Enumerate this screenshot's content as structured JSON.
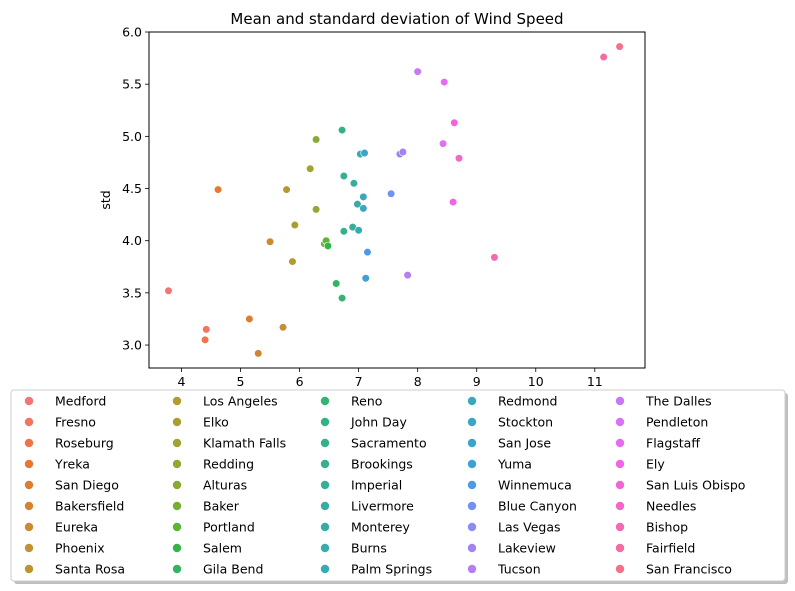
{
  "chart_data": {
    "type": "scatter",
    "title": "Mean and standard deviation of Wind Speed",
    "xlabel": "",
    "ylabel": "std",
    "xlim": [
      3.45,
      11.85
    ],
    "ylim": [
      2.78,
      6.0
    ],
    "xticks": [
      "4",
      "5",
      "6",
      "7",
      "8",
      "9",
      "10",
      "11"
    ],
    "yticks": [
      "3.0",
      "3.5",
      "4.0",
      "4.5",
      "5.0",
      "5.5",
      "6.0"
    ],
    "grid": false,
    "legend_position": "bottom",
    "series": [
      {
        "name": "Medford",
        "color": "#f37376",
        "x": 3.78,
        "y": 3.52
      },
      {
        "name": "Fresno",
        "color": "#f27461",
        "x": 4.42,
        "y": 3.15
      },
      {
        "name": "Roseburg",
        "color": "#ef7448",
        "x": 4.4,
        "y": 3.05
      },
      {
        "name": "Yreka",
        "color": "#e5792f",
        "x": 4.62,
        "y": 4.49
      },
      {
        "name": "San Diego",
        "color": "#dd7d31",
        "x": 5.15,
        "y": 3.25
      },
      {
        "name": "Bakersfield",
        "color": "#d38331",
        "x": 5.3,
        "y": 2.92
      },
      {
        "name": "Eureka",
        "color": "#cb8a31",
        "x": 5.5,
        "y": 3.99
      },
      {
        "name": "Phoenix",
        "color": "#c39032",
        "x": 5.72,
        "y": 3.17
      },
      {
        "name": "Santa Rosa",
        "color": "#bb9532",
        "x": 5.78,
        "y": 4.49
      },
      {
        "name": "Los Angeles",
        "color": "#b39a32",
        "x": 5.88,
        "y": 3.8
      },
      {
        "name": "Elko",
        "color": "#aa9e32",
        "x": 5.92,
        "y": 4.15
      },
      {
        "name": "Klamath Falls",
        "color": "#a0a232",
        "x": 6.18,
        "y": 4.69
      },
      {
        "name": "Redding",
        "color": "#95a632",
        "x": 6.28,
        "y": 4.3
      },
      {
        "name": "Alturas",
        "color": "#87aa32",
        "x": 6.28,
        "y": 4.97
      },
      {
        "name": "Baker",
        "color": "#76ae32",
        "x": 6.42,
        "y": 3.97
      },
      {
        "name": "Portland",
        "color": "#5db332",
        "x": 6.45,
        "y": 4.0
      },
      {
        "name": "Salem",
        "color": "#33b546",
        "x": 6.48,
        "y": 3.95
      },
      {
        "name": "Gila Bend",
        "color": "#34b462",
        "x": 6.62,
        "y": 3.59
      },
      {
        "name": "Reno",
        "color": "#35b373",
        "x": 6.72,
        "y": 3.45
      },
      {
        "name": "John Day",
        "color": "#35b27f",
        "x": 6.72,
        "y": 5.06
      },
      {
        "name": "Sacramento",
        "color": "#35b089",
        "x": 6.75,
        "y": 4.09
      },
      {
        "name": "Brookings",
        "color": "#36af92",
        "x": 6.75,
        "y": 4.62
      },
      {
        "name": "Imperial",
        "color": "#36ae99",
        "x": 6.9,
        "y": 4.13
      },
      {
        "name": "Livermore",
        "color": "#37ada0",
        "x": 6.92,
        "y": 4.55
      },
      {
        "name": "Monterey",
        "color": "#37aca7",
        "x": 6.98,
        "y": 4.35
      },
      {
        "name": "Burns",
        "color": "#38abad",
        "x": 7.0,
        "y": 4.1
      },
      {
        "name": "Palm Springs",
        "color": "#38aab4",
        "x": 7.03,
        "y": 4.83
      },
      {
        "name": "Redmond",
        "color": "#39a8bb",
        "x": 7.08,
        "y": 4.42
      },
      {
        "name": "Stockton",
        "color": "#39a7c3",
        "x": 7.08,
        "y": 4.31
      },
      {
        "name": "San Jose",
        "color": "#3ba4cc",
        "x": 7.1,
        "y": 4.84
      },
      {
        "name": "Yuma",
        "color": "#3ca1d8",
        "x": 7.12,
        "y": 3.64
      },
      {
        "name": "Winnemuca",
        "color": "#4f9ae8",
        "x": 7.15,
        "y": 3.89
      },
      {
        "name": "Blue Canyon",
        "color": "#7191f4",
        "x": 7.55,
        "y": 4.45
      },
      {
        "name": "Las Vegas",
        "color": "#8c8af4",
        "x": 7.7,
        "y": 4.83
      },
      {
        "name": "Lakeview",
        "color": "#a283f4",
        "x": 7.75,
        "y": 4.85
      },
      {
        "name": "Tucson",
        "color": "#b67ef4",
        "x": 7.83,
        "y": 3.67
      },
      {
        "name": "The Dalles",
        "color": "#c878f4",
        "x": 8.0,
        "y": 5.62
      },
      {
        "name": "Pendleton",
        "color": "#d972f4",
        "x": 8.43,
        "y": 4.93
      },
      {
        "name": "Flagstaff",
        "color": "#e76bf2",
        "x": 8.45,
        "y": 5.52
      },
      {
        "name": "Ely",
        "color": "#f066e4",
        "x": 8.6,
        "y": 4.37
      },
      {
        "name": "San Luis Obispo",
        "color": "#f265d4",
        "x": 8.62,
        "y": 5.13
      },
      {
        "name": "Needles",
        "color": "#f467c4",
        "x": 8.7,
        "y": 4.79
      },
      {
        "name": "Bishop",
        "color": "#f569b4",
        "x": 9.3,
        "y": 3.84
      },
      {
        "name": "Fairfield",
        "color": "#f66ba0",
        "x": 11.15,
        "y": 5.76
      },
      {
        "name": "San Francisco",
        "color": "#f66f8b",
        "x": 11.42,
        "y": 5.86
      }
    ]
  }
}
